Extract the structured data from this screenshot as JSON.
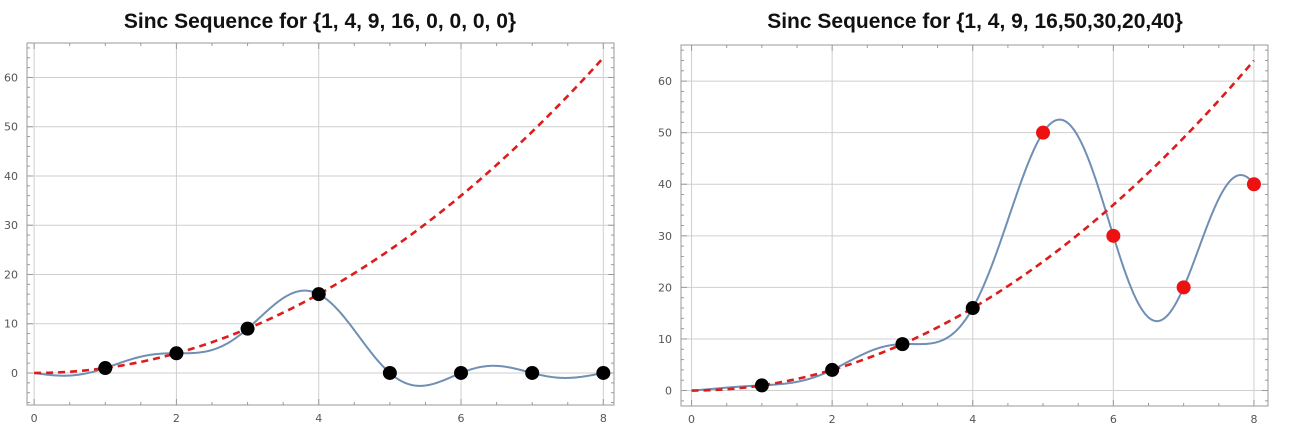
{
  "chart_data": [
    {
      "type": "scatter",
      "title": "Sinc Sequence for {1, 4, 9, 16, 0, 0, 0, 0}",
      "xlabel": "",
      "ylabel": "",
      "xlim": [
        -0.1,
        8.15
      ],
      "ylim": [
        -6.5,
        67
      ],
      "xticks": [
        0,
        2,
        4,
        6,
        8
      ],
      "yticks": [
        0,
        10,
        20,
        30,
        40,
        50,
        60
      ],
      "grid": true,
      "sample_points": {
        "x": [
          1,
          2,
          3,
          4,
          5,
          6,
          7,
          8
        ],
        "y": [
          1,
          4,
          9,
          16,
          0,
          0,
          0,
          0
        ],
        "colors": [
          "#000000",
          "#000000",
          "#000000",
          "#000000",
          "#000000",
          "#000000",
          "#000000",
          "#000000"
        ]
      },
      "series": [
        {
          "values": [
            1,
            4,
            9,
            16,
            0,
            0,
            0,
            0
          ],
          "style": "solid",
          "color": "#6f8fb4",
          "kind": "sinc-interpolation"
        },
        {
          "values": "y = x^2",
          "style": "dashed",
          "color": "#dd1c1c",
          "kind": "function"
        }
      ]
    },
    {
      "type": "scatter",
      "title": "Sinc Sequence for {1, 4, 9, 16,50,30,20,40}",
      "xlabel": "",
      "ylabel": "",
      "xlim": [
        -0.15,
        8.2
      ],
      "ylim": [
        -3,
        67
      ],
      "xticks": [
        0,
        2,
        4,
        6,
        8
      ],
      "yticks": [
        0,
        10,
        20,
        30,
        40,
        50,
        60
      ],
      "grid": true,
      "sample_points": {
        "x": [
          1,
          2,
          3,
          4,
          5,
          6,
          7,
          8
        ],
        "y": [
          1,
          4,
          9,
          16,
          50,
          30,
          20,
          40
        ],
        "colors": [
          "#000000",
          "#000000",
          "#000000",
          "#000000",
          "#ee1111",
          "#ee1111",
          "#ee1111",
          "#ee1111"
        ]
      },
      "series": [
        {
          "values": [
            1,
            4,
            9,
            16,
            50,
            30,
            20,
            40
          ],
          "style": "solid",
          "color": "#6f8fb4",
          "kind": "sinc-interpolation"
        },
        {
          "values": "y = x^2",
          "style": "dashed",
          "color": "#dd1c1c",
          "kind": "function"
        }
      ]
    }
  ]
}
